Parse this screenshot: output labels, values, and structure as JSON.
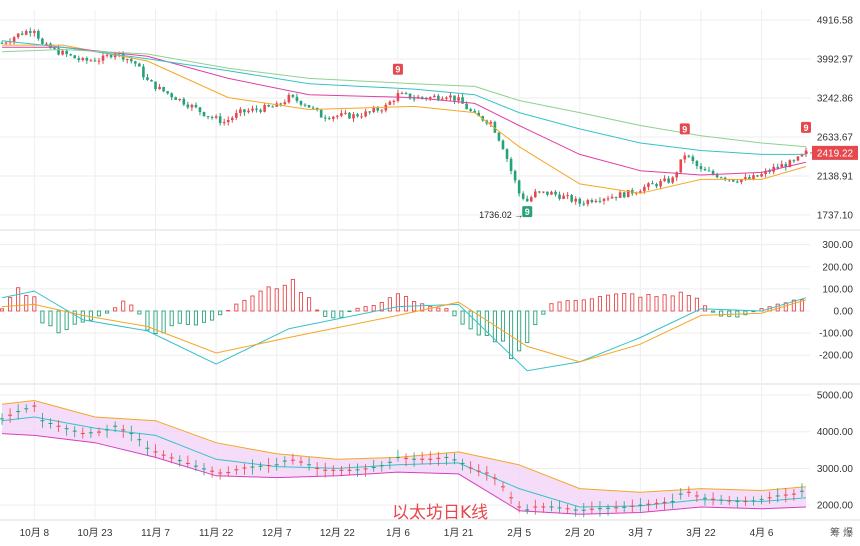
{
  "colors": {
    "up": "#e5484d",
    "down": "#26a17b",
    "ma_orange": "#f5a623",
    "ma_pink": "#e040a0",
    "ma_teal": "#35c2c8",
    "ma_green": "#8fd18f",
    "macd_dif": "#35c2c8",
    "macd_dea": "#f5a623",
    "boll_fill": "#f3d4f7",
    "boll_upper": "#f5a623",
    "boll_lower": "#d63fbf",
    "boll_mid": "#35c2c8",
    "grid": "#eeeeee",
    "price_badge": "#e5484d"
  },
  "chart_data": [
    {
      "type": "candlestick",
      "title": "",
      "watermark": "以太坊日K线",
      "x_ticks": [
        "10月 8",
        "10月 23",
        "11月 7",
        "11月 22",
        "12月 7",
        "12月 22",
        "1月 6",
        "1月 21",
        "2月 5",
        "2月 20",
        "3月 7",
        "3月 22",
        "4月 6"
      ],
      "y_ticks": [
        "4916.58",
        "3992.97",
        "3242.86",
        "2633.67",
        "2138.91",
        "1737.10"
      ],
      "ylim": [
        1620,
        5050
      ],
      "log_scale": true,
      "last_price": "2419.22",
      "low_annotation": {
        "text": "1736.02 →",
        "date": "Feb 7",
        "value": 1736.02
      },
      "td_markers": [
        {
          "label": "9",
          "date": "Jan 6",
          "color": "up"
        },
        {
          "label": "9",
          "date": "Feb 7",
          "color": "down"
        },
        {
          "label": "9",
          "date": "Mar 18",
          "color": "up"
        },
        {
          "label": "9",
          "date": "Apr 17",
          "color": "up"
        }
      ],
      "close_path": [
        [
          "Sep 30",
          4350
        ],
        [
          "Oct 4",
          4550
        ],
        [
          "Oct 8",
          4700
        ],
        [
          "Oct 10",
          4300
        ],
        [
          "Oct 14",
          4150
        ],
        [
          "Oct 20",
          3950
        ],
        [
          "Oct 25",
          4000
        ],
        [
          "Oct 28",
          4150
        ],
        [
          "Nov 2",
          3900
        ],
        [
          "Nov 5",
          3550
        ],
        [
          "Nov 8",
          3400
        ],
        [
          "Nov 12",
          3250
        ],
        [
          "Nov 16",
          3100
        ],
        [
          "Nov 20",
          2950
        ],
        [
          "Nov 24",
          2850
        ],
        [
          "Nov 28",
          3000
        ],
        [
          "Dec 2",
          3050
        ],
        [
          "Dec 7",
          3100
        ],
        [
          "Dec 10",
          3250
        ],
        [
          "Dec 14",
          3150
        ],
        [
          "Dec 18",
          2950
        ],
        [
          "Dec 22",
          2950
        ],
        [
          "Dec 26",
          2950
        ],
        [
          "Dec 30",
          3000
        ],
        [
          "Jan 3",
          3100
        ],
        [
          "Jan 6",
          3300
        ],
        [
          "Jan 10",
          3250
        ],
        [
          "Jan 14",
          3250
        ],
        [
          "Jan 18",
          3300
        ],
        [
          "Jan 21",
          3200
        ],
        [
          "Jan 25",
          2950
        ],
        [
          "Jan 29",
          2850
        ],
        [
          "Feb 1",
          2500
        ],
        [
          "Feb 3",
          2200
        ],
        [
          "Feb 5",
          1950
        ],
        [
          "Feb 7",
          1870
        ],
        [
          "Feb 9",
          1950
        ],
        [
          "Feb 13",
          1950
        ],
        [
          "Feb 17",
          1900
        ],
        [
          "Feb 20",
          1850
        ],
        [
          "Feb 24",
          1900
        ],
        [
          "Feb 28",
          1920
        ],
        [
          "Mar 4",
          1950
        ],
        [
          "Mar 7",
          2000
        ],
        [
          "Mar 11",
          2050
        ],
        [
          "Mar 15",
          2100
        ],
        [
          "Mar 18",
          2400
        ],
        [
          "Mar 22",
          2200
        ],
        [
          "Mar 26",
          2150
        ],
        [
          "Mar 30",
          2100
        ],
        [
          "Apr 3",
          2100
        ],
        [
          "Apr 6",
          2150
        ],
        [
          "Apr 10",
          2250
        ],
        [
          "Apr 14",
          2300
        ],
        [
          "Apr 17",
          2419
        ]
      ],
      "ma_lines": [
        {
          "color": "ma_orange",
          "path": [
            [
              "Sep 30",
              4300
            ],
            [
              "Oct 15",
              4300
            ],
            [
              "Nov 5",
              3950
            ],
            [
              "Nov 25",
              3250
            ],
            [
              "Dec 15",
              3050
            ],
            [
              "Jan 10",
              3100
            ],
            [
              "Jan 25",
              3000
            ],
            [
              "Feb 5",
              2500
            ],
            [
              "Feb 20",
              2050
            ],
            [
              "Mar 7",
              1950
            ],
            [
              "Mar 22",
              2100
            ],
            [
              "Apr 6",
              2100
            ],
            [
              "Apr 17",
              2250
            ]
          ]
        },
        {
          "color": "ma_pink",
          "path": [
            [
              "Sep 30",
              4250
            ],
            [
              "Oct 15",
              4250
            ],
            [
              "Nov 5",
              4050
            ],
            [
              "Nov 25",
              3600
            ],
            [
              "Dec 15",
              3300
            ],
            [
              "Jan 10",
              3250
            ],
            [
              "Jan 25",
              3150
            ],
            [
              "Feb 5",
              2800
            ],
            [
              "Feb 20",
              2400
            ],
            [
              "Mar 7",
              2200
            ],
            [
              "Mar 22",
              2150
            ],
            [
              "Apr 6",
              2180
            ],
            [
              "Apr 17",
              2300
            ]
          ]
        },
        {
          "color": "ma_teal",
          "path": [
            [
              "Sep 30",
              4400
            ],
            [
              "Oct 15",
              4250
            ],
            [
              "Nov 5",
              4000
            ],
            [
              "Nov 25",
              3750
            ],
            [
              "Dec 15",
              3500
            ],
            [
              "Jan 10",
              3400
            ],
            [
              "Jan 25",
              3300
            ],
            [
              "Feb 5",
              3000
            ],
            [
              "Feb 20",
              2750
            ],
            [
              "Mar 7",
              2550
            ],
            [
              "Mar 22",
              2450
            ],
            [
              "Apr 6",
              2400
            ],
            [
              "Apr 17",
              2400
            ]
          ]
        },
        {
          "color": "ma_green",
          "path": [
            [
              "Sep 30",
              4150
            ],
            [
              "Oct 15",
              4200
            ],
            [
              "Nov 5",
              4100
            ],
            [
              "Nov 25",
              3800
            ],
            [
              "Dec 15",
              3600
            ],
            [
              "Jan 10",
              3500
            ],
            [
              "Jan 25",
              3450
            ],
            [
              "Feb 5",
              3200
            ],
            [
              "Feb 20",
              3000
            ],
            [
              "Mar 7",
              2800
            ],
            [
              "Mar 22",
              2650
            ],
            [
              "Apr 6",
              2550
            ],
            [
              "Apr 17",
              2500
            ]
          ]
        }
      ]
    },
    {
      "type": "bar",
      "indicator": "MACD",
      "y_ticks": [
        "300.00",
        "200.00",
        "100.00",
        "0.00",
        "-100.00",
        "-200.00"
      ],
      "ylim": [
        -330,
        330
      ],
      "histogram": [
        [
          "Sep 30",
          10
        ],
        [
          "Oct 2",
          60
        ],
        [
          "Oct 4",
          100
        ],
        [
          "Oct 6",
          80
        ],
        [
          "Oct 8",
          60
        ],
        [
          "Oct 10",
          -60
        ],
        [
          "Oct 14",
          -90
        ],
        [
          "Oct 18",
          -70
        ],
        [
          "Oct 22",
          -40
        ],
        [
          "Oct 26",
          -10
        ],
        [
          "Oct 30",
          40
        ],
        [
          "Nov 2",
          20
        ],
        [
          "Nov 5",
          -80
        ],
        [
          "Nov 8",
          -120
        ],
        [
          "Nov 12",
          -60
        ],
        [
          "Nov 16",
          -70
        ],
        [
          "Nov 20",
          -50
        ],
        [
          "Nov 24",
          -10
        ],
        [
          "Nov 28",
          40
        ],
        [
          "Dec 2",
          80
        ],
        [
          "Dec 7",
          110
        ],
        [
          "Dec 10",
          140
        ],
        [
          "Dec 14",
          80
        ],
        [
          "Dec 18",
          -20
        ],
        [
          "Dec 22",
          -40
        ],
        [
          "Dec 26",
          10
        ],
        [
          "Dec 30",
          20
        ],
        [
          "Jan 3",
          50
        ],
        [
          "Jan 6",
          80
        ],
        [
          "Jan 10",
          40
        ],
        [
          "Jan 14",
          20
        ],
        [
          "Jan 18",
          10
        ],
        [
          "Jan 21",
          -40
        ],
        [
          "Jan 25",
          -90
        ],
        [
          "Jan 29",
          -110
        ],
        [
          "Feb 1",
          -150
        ],
        [
          "Feb 3",
          -200
        ],
        [
          "Feb 5",
          -210
        ],
        [
          "Feb 7",
          -150
        ],
        [
          "Feb 9",
          -60
        ],
        [
          "Feb 13",
          30
        ],
        [
          "Feb 17",
          50
        ],
        [
          "Feb 20",
          55
        ],
        [
          "Feb 24",
          60
        ],
        [
          "Feb 28",
          70
        ],
        [
          "Mar 4",
          75
        ],
        [
          "Mar 7",
          70
        ],
        [
          "Mar 11",
          65
        ],
        [
          "Mar 15",
          70
        ],
        [
          "Mar 18",
          90
        ],
        [
          "Mar 22",
          40
        ],
        [
          "Mar 26",
          -20
        ],
        [
          "Mar 30",
          -30
        ],
        [
          "Apr 3",
          -10
        ],
        [
          "Apr 6",
          10
        ],
        [
          "Apr 10",
          30
        ],
        [
          "Apr 14",
          50
        ],
        [
          "Apr 17",
          60
        ]
      ],
      "dif": [
        [
          "Sep 30",
          60
        ],
        [
          "Oct 8",
          90
        ],
        [
          "Oct 20",
          -40
        ],
        [
          "Nov 5",
          -90
        ],
        [
          "Nov 22",
          -240
        ],
        [
          "Dec 10",
          -80
        ],
        [
          "Jan 6",
          20
        ],
        [
          "Jan 21",
          30
        ],
        [
          "Feb 7",
          -270
        ],
        [
          "Feb 20",
          -230
        ],
        [
          "Mar 7",
          -120
        ],
        [
          "Mar 22",
          10
        ],
        [
          "Apr 6",
          0
        ],
        [
          "Apr 17",
          60
        ]
      ],
      "dea": [
        [
          "Sep 30",
          20
        ],
        [
          "Oct 8",
          30
        ],
        [
          "Oct 20",
          -20
        ],
        [
          "Nov 5",
          -70
        ],
        [
          "Nov 22",
          -190
        ],
        [
          "Dec 10",
          -120
        ],
        [
          "Jan 6",
          -20
        ],
        [
          "Jan 21",
          40
        ],
        [
          "Feb 7",
          -160
        ],
        [
          "Feb 20",
          -230
        ],
        [
          "Mar 7",
          -150
        ],
        [
          "Mar 22",
          -20
        ],
        [
          "Apr 6",
          -10
        ],
        [
          "Apr 17",
          50
        ]
      ]
    },
    {
      "type": "area",
      "indicator": "BOLL",
      "y_ticks": [
        "5000.00",
        "4000.00",
        "3000.00",
        "2000.00"
      ],
      "ylim": [
        1650,
        5300
      ],
      "upper": [
        [
          "Sep 30",
          4750
        ],
        [
          "Oct 8",
          4850
        ],
        [
          "Oct 23",
          4400
        ],
        [
          "Nov 7",
          4300
        ],
        [
          "Nov 22",
          3700
        ],
        [
          "Dec 7",
          3400
        ],
        [
          "Dec 22",
          3250
        ],
        [
          "Jan 6",
          3300
        ],
        [
          "Jan 21",
          3450
        ],
        [
          "Feb 5",
          3100
        ],
        [
          "Feb 20",
          2450
        ],
        [
          "Mar 7",
          2350
        ],
        [
          "Mar 22",
          2450
        ],
        [
          "Apr 6",
          2400
        ],
        [
          "Apr 17",
          2500
        ]
      ],
      "middle": [
        [
          "Sep 30",
          4300
        ],
        [
          "Oct 8",
          4400
        ],
        [
          "Oct 23",
          4100
        ],
        [
          "Nov 7",
          3900
        ],
        [
          "Nov 22",
          3250
        ],
        [
          "Dec 7",
          3050
        ],
        [
          "Dec 22",
          3000
        ],
        [
          "Jan 6",
          3100
        ],
        [
          "Jan 21",
          3150
        ],
        [
          "Feb 5",
          2450
        ],
        [
          "Feb 20",
          1950
        ],
        [
          "Mar 7",
          1980
        ],
        [
          "Mar 22",
          2150
        ],
        [
          "Apr 6",
          2100
        ],
        [
          "Apr 17",
          2200
        ]
      ],
      "lower": [
        [
          "Sep 30",
          3950
        ],
        [
          "Oct 8",
          3900
        ],
        [
          "Oct 23",
          3700
        ],
        [
          "Nov 7",
          3300
        ],
        [
          "Nov 22",
          2800
        ],
        [
          "Dec 7",
          2750
        ],
        [
          "Dec 22",
          2800
        ],
        [
          "Jan 6",
          2900
        ],
        [
          "Jan 21",
          2850
        ],
        [
          "Feb 5",
          1850
        ],
        [
          "Feb 20",
          1750
        ],
        [
          "Mar 7",
          1800
        ],
        [
          "Mar 22",
          1950
        ],
        [
          "Apr 6",
          1900
        ],
        [
          "Apr 17",
          1950
        ]
      ]
    }
  ],
  "corner_label": "筹 爆"
}
